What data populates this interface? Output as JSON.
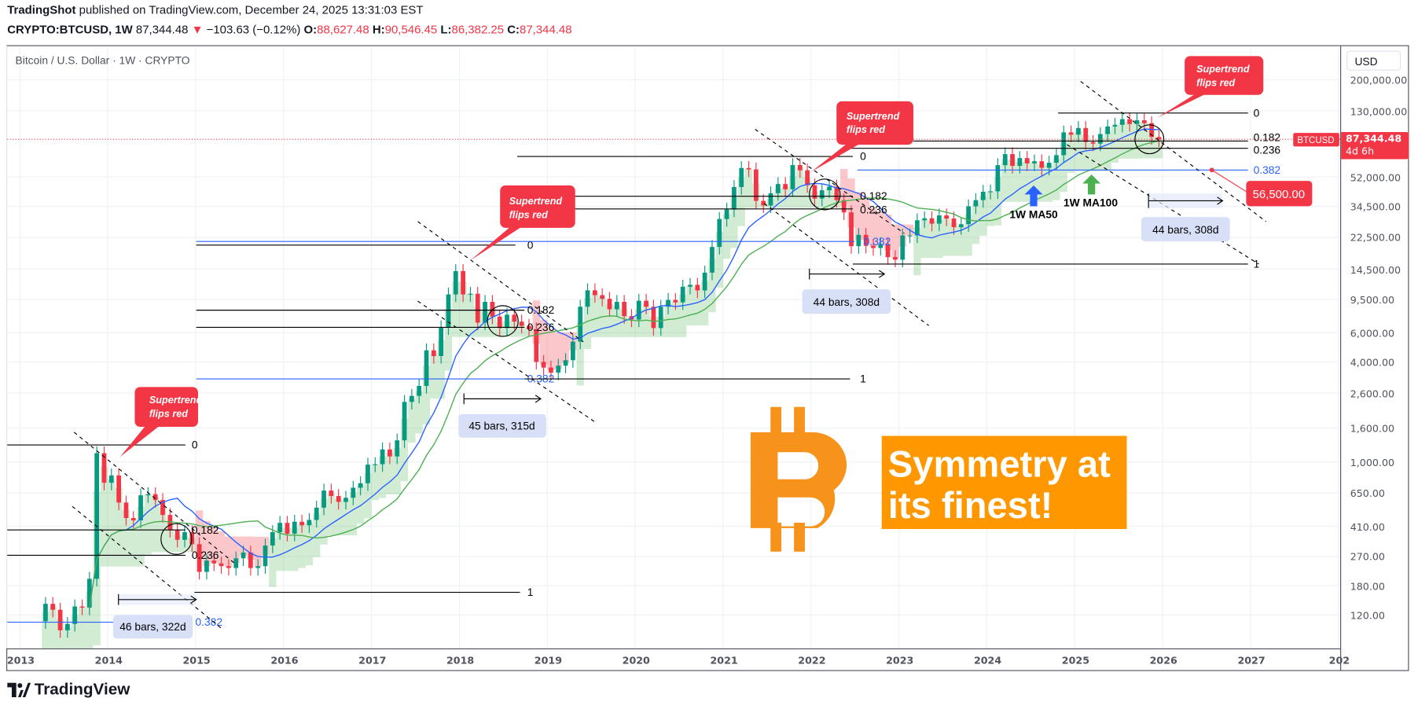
{
  "header": {
    "author": "TradingShot",
    "published": "published on TradingView.com, December 24, 2025 13:31:03 EST",
    "symbol": "CRYPTO:BTCUSD, 1W",
    "last": "87,344.48",
    "change": "−103.63 (−0.12%)",
    "o_label": "O:",
    "o": "88,627.48",
    "h_label": "H:",
    "h": "90,546.45",
    "l_label": "L:",
    "l": "86,382.25",
    "c_label": "C:",
    "c": "87,344.48"
  },
  "chart_title": "Bitcoin / U.S. Dollar · 1W · CRYPTO",
  "price_axis": {
    "currency": "USD",
    "ticks": [
      "200,000.00",
      "130,000.00",
      "52,000.00",
      "34,500.00",
      "22,500.00",
      "14,500.00",
      "9,500.00",
      "6,000.00",
      "4,000.00",
      "2,600.00",
      "1,600.00",
      "1,000.00",
      "650.00",
      "410.00",
      "270.00",
      "180.00",
      "120.00"
    ],
    "last_price": "87,344.48",
    "countdown": "4d 6h",
    "symbol_tag": "BTCUSD"
  },
  "time_axis": [
    "2013",
    "2014",
    "2015",
    "2016",
    "2017",
    "2018",
    "2019",
    "2020",
    "2021",
    "2022",
    "2023",
    "2024",
    "2025",
    "2026",
    "2027",
    "202"
  ],
  "annotations": {
    "callout": "Supertrend flips red",
    "callout_l1": "Supertrend",
    "callout_l2": "flips red",
    "fib": {
      "l0": "0",
      "l182": "0.182",
      "l236": "0.236",
      "l382": "0.382",
      "l1": "1"
    },
    "measure1": "46 bars, 322d",
    "measure2": "45 bars, 315d",
    "measure3": "44 bars, 308d",
    "measure4": "44 bars, 308d",
    "target": "56,500.00",
    "ma50_label": "1W MA50",
    "ma100_label": "1W MA100",
    "headline_l1": "Symmetry at",
    "headline_l2": "its finest!"
  },
  "colors": {
    "up": "#089981",
    "down": "#f23645",
    "ma50": "#2962ff",
    "ma100": "#4caf50",
    "fib_blue": "#2962ff",
    "bitcoin": "#f7931a",
    "headline_bg": "#ff9800"
  },
  "footer": {
    "brand": "TradingView"
  },
  "chart_data": {
    "type": "candlestick",
    "scale": "log",
    "interval": "monthly approximation of weekly candles",
    "start": "2013-04",
    "closes": [
      140,
      129,
      97,
      106,
      135,
      133,
      198,
      1130,
      750,
      830,
      570,
      460,
      445,
      630,
      640,
      590,
      480,
      390,
      340,
      378,
      320,
      218,
      255,
      245,
      236,
      230,
      263,
      285,
      230,
      236,
      314,
      378,
      430,
      370,
      437,
      416,
      448,
      531,
      673,
      624,
      575,
      609,
      700,
      745,
      964,
      970,
      1190,
      1080,
      1350,
      2300,
      2500,
      2870,
      4700,
      4340,
      6470,
      10200,
      14100,
      10200,
      10300,
      6900,
      9200,
      7500,
      6400,
      7700,
      7000,
      6600,
      6300,
      4000,
      3700,
      3450,
      3800,
      4100,
      5300,
      8600,
      10800,
      10100,
      9600,
      8300,
      9200,
      7550,
      7200,
      9350,
      8600,
      6400,
      8600,
      9450,
      9140,
      11350,
      11650,
      10780,
      13800,
      19700,
      29000,
      33100,
      45200,
      58800,
      57700,
      37300,
      35000,
      41500,
      47100,
      43800,
      61300,
      57000,
      46300,
      38500,
      43200,
      45500,
      37700,
      31800,
      19900,
      23300,
      20000,
      19400,
      20500,
      17100,
      16500,
      23100,
      23100,
      28500,
      29300,
      27200,
      30500,
      29200,
      25900,
      27000,
      34600,
      37700,
      42300,
      42600,
      61200,
      71300,
      60600,
      67500,
      62700,
      64600,
      59000,
      63300,
      70300,
      96400,
      93400,
      102400,
      84400,
      82500,
      94200,
      104600,
      107100,
      115800,
      108200,
      114000,
      109500,
      90400,
      87344
    ],
    "indicators": [
      "1W MA50",
      "1W MA100",
      "Supertrend"
    ],
    "ylim": [
      80,
      260000
    ],
    "xlim": [
      "2013-01",
      "2028-01"
    ],
    "grid": true
  }
}
